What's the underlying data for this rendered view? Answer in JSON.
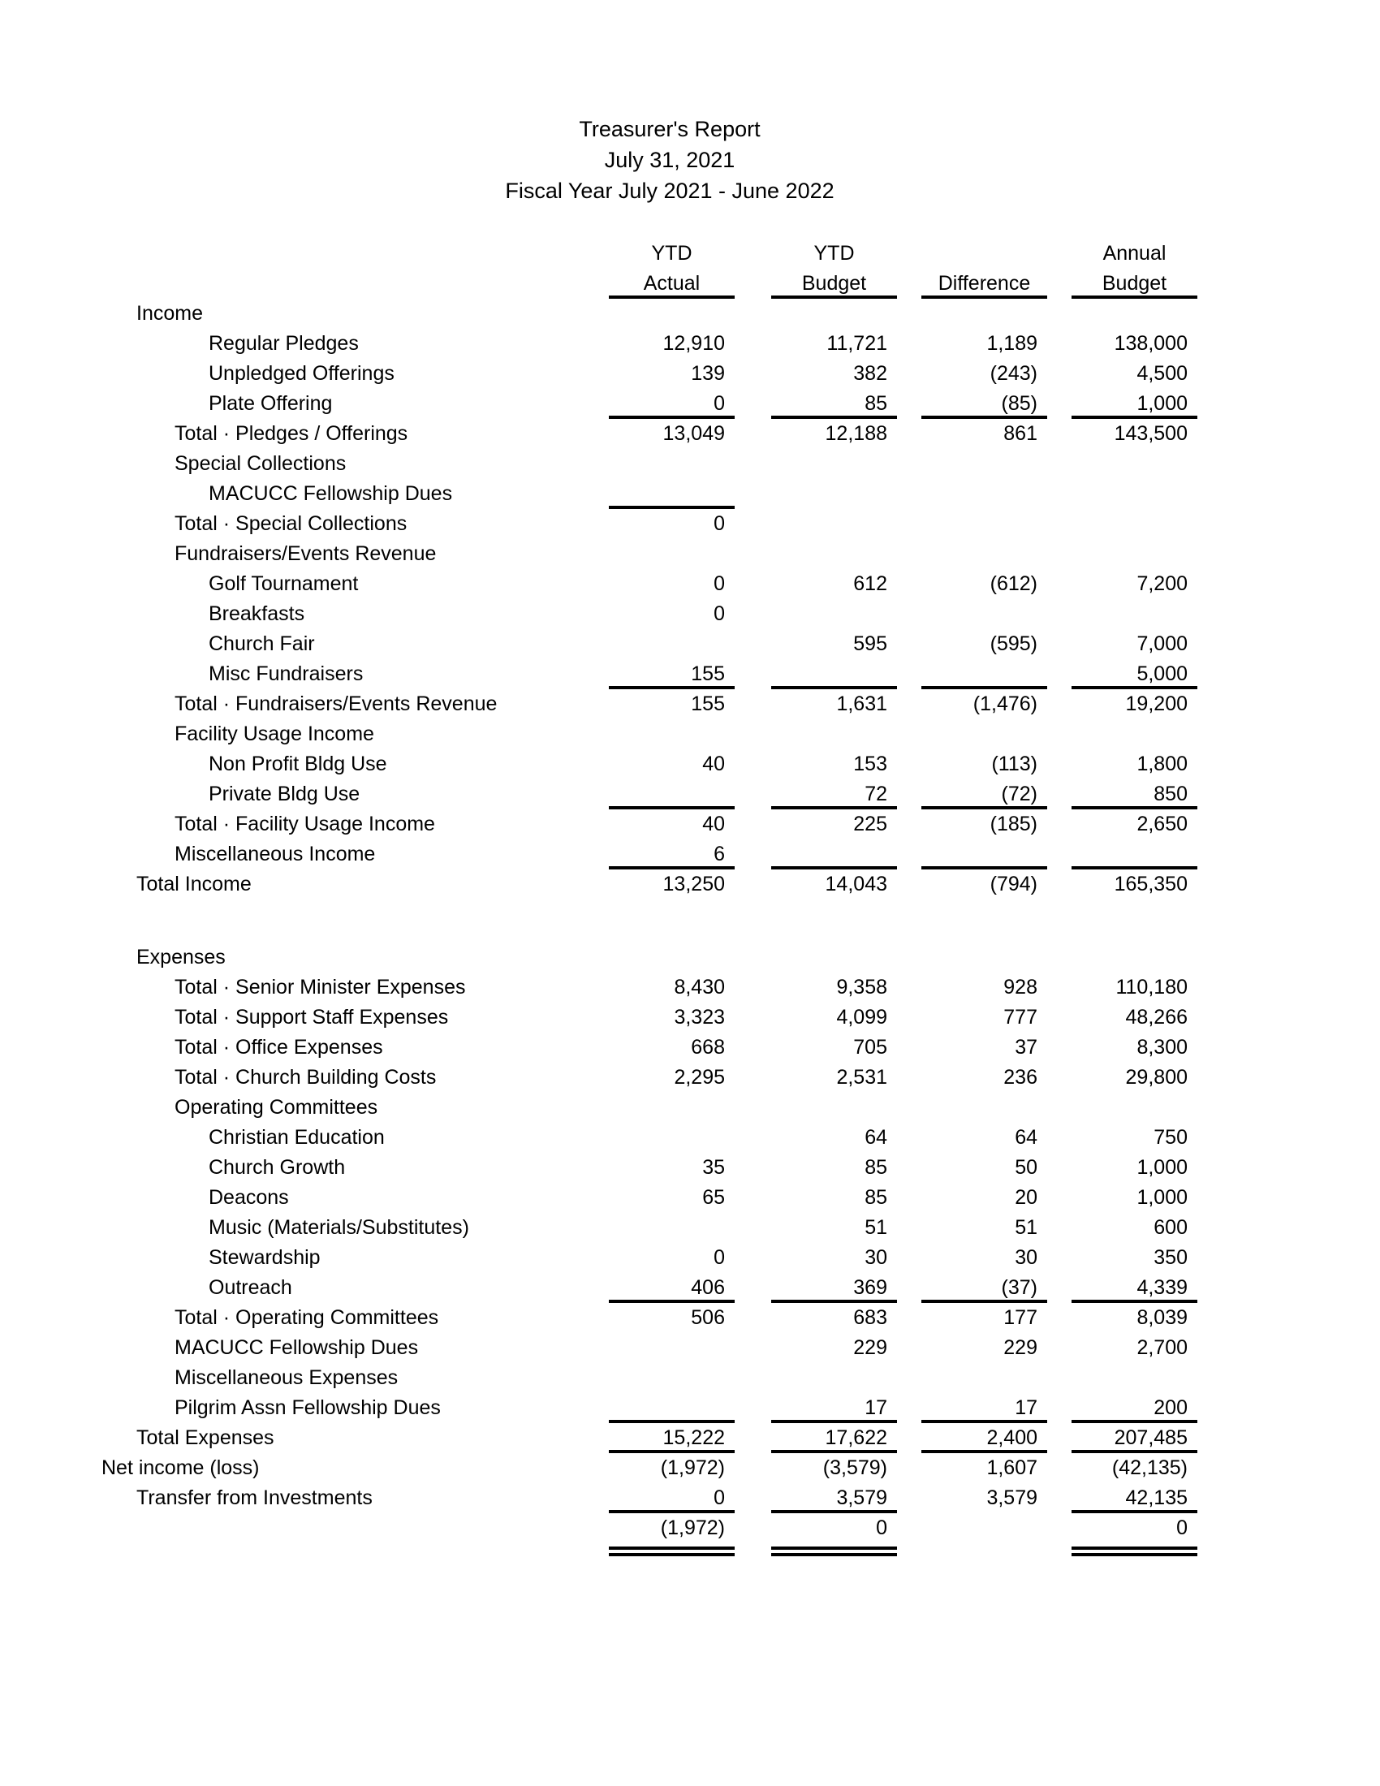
{
  "report": {
    "title_lines": [
      "Treasurer's Report",
      "July 31, 2021",
      "Fiscal Year July 2021 - June 2022"
    ],
    "columns": [
      {
        "line1": "YTD",
        "line2": "Actual"
      },
      {
        "line1": "YTD",
        "line2": "Budget"
      },
      {
        "line1": "",
        "line2": "Difference"
      },
      {
        "line1": "Annual",
        "line2": "Budget"
      }
    ],
    "rows": [
      {
        "label": "Income",
        "indent": 1,
        "values": [
          "",
          "",
          "",
          ""
        ]
      },
      {
        "label": "Regular Pledges",
        "indent": 3,
        "values": [
          "12,910",
          "11,721",
          "1,189",
          "138,000"
        ]
      },
      {
        "label": "Unpledged Offerings",
        "indent": 3,
        "values": [
          "139",
          "382",
          "(243)",
          "4,500"
        ]
      },
      {
        "label": "Plate Offering",
        "indent": 3,
        "values": [
          "0",
          "85",
          "(85)",
          "1,000"
        ],
        "rule_below": [
          1,
          1,
          1,
          1
        ]
      },
      {
        "label": "Total · Pledges / Offerings",
        "indent": 2,
        "values": [
          "13,049",
          "12,188",
          "861",
          "143,500"
        ]
      },
      {
        "label": "Special Collections",
        "indent": 2,
        "values": [
          "",
          "",
          "",
          ""
        ]
      },
      {
        "label": "MACUCC Fellowship Dues",
        "indent": 3,
        "values": [
          "",
          "",
          "",
          ""
        ],
        "rule_below": [
          1,
          0,
          0,
          0
        ]
      },
      {
        "label": "Total · Special Collections",
        "indent": 2,
        "values": [
          "0",
          "",
          "",
          ""
        ]
      },
      {
        "label": "Fundraisers/Events Revenue",
        "indent": 2,
        "values": [
          "",
          "",
          "",
          ""
        ]
      },
      {
        "label": "Golf Tournament",
        "indent": 3,
        "values": [
          "0",
          "612",
          "(612)",
          "7,200"
        ]
      },
      {
        "label": "Breakfasts",
        "indent": 3,
        "values": [
          "0",
          "",
          "",
          ""
        ]
      },
      {
        "label": "Church Fair",
        "indent": 3,
        "values": [
          "",
          "595",
          "(595)",
          "7,000"
        ]
      },
      {
        "label": "Misc Fundraisers",
        "indent": 3,
        "values": [
          "155",
          "",
          "",
          "5,000"
        ],
        "rule_below": [
          1,
          1,
          1,
          1
        ]
      },
      {
        "label": "Total · Fundraisers/Events Revenue",
        "indent": 2,
        "values": [
          "155",
          "1,631",
          "(1,476)",
          "19,200"
        ]
      },
      {
        "label": "Facility Usage Income",
        "indent": 2,
        "values": [
          "",
          "",
          "",
          ""
        ]
      },
      {
        "label": "Non Profit Bldg Use",
        "indent": 3,
        "values": [
          "40",
          "153",
          "(113)",
          "1,800"
        ]
      },
      {
        "label": "Private Bldg Use",
        "indent": 3,
        "values": [
          "",
          "72",
          "(72)",
          "850"
        ],
        "rule_below": [
          1,
          1,
          1,
          1
        ]
      },
      {
        "label": "Total · Facility Usage Income",
        "indent": 2,
        "values": [
          "40",
          "225",
          "(185)",
          "2,650"
        ]
      },
      {
        "label": "Miscellaneous Income",
        "indent": 2,
        "values": [
          "6",
          "",
          "",
          ""
        ],
        "rule_below": [
          1,
          1,
          1,
          1
        ]
      },
      {
        "label": "Total Income",
        "indent": 1,
        "values": [
          "13,250",
          "14,043",
          "(794)",
          "165,350"
        ]
      },
      {
        "label": "Expenses",
        "indent": 1,
        "values": [
          "",
          "",
          "",
          ""
        ],
        "gap_before": true
      },
      {
        "label": "Total · Senior Minister Expenses",
        "indent": 2,
        "values": [
          "8,430",
          "9,358",
          "928",
          "110,180"
        ]
      },
      {
        "label": "Total · Support Staff Expenses",
        "indent": 2,
        "values": [
          "3,323",
          "4,099",
          "777",
          "48,266"
        ]
      },
      {
        "label": "Total · Office Expenses",
        "indent": 2,
        "values": [
          "668",
          "705",
          "37",
          "8,300"
        ]
      },
      {
        "label": "Total · Church Building Costs",
        "indent": 2,
        "values": [
          "2,295",
          "2,531",
          "236",
          "29,800"
        ]
      },
      {
        "label": "Operating Committees",
        "indent": 2,
        "values": [
          "",
          "",
          "",
          ""
        ]
      },
      {
        "label": "Christian Education",
        "indent": 3,
        "values": [
          "",
          "64",
          "64",
          "750"
        ]
      },
      {
        "label": "Church Growth",
        "indent": 3,
        "values": [
          "35",
          "85",
          "50",
          "1,000"
        ]
      },
      {
        "label": "Deacons",
        "indent": 3,
        "values": [
          "65",
          "85",
          "20",
          "1,000"
        ]
      },
      {
        "label": "Music (Materials/Substitutes)",
        "indent": 3,
        "values": [
          "",
          "51",
          "51",
          "600"
        ]
      },
      {
        "label": "Stewardship",
        "indent": 3,
        "values": [
          "0",
          "30",
          "30",
          "350"
        ]
      },
      {
        "label": "Outreach",
        "indent": 3,
        "values": [
          "406",
          "369",
          "(37)",
          "4,339"
        ],
        "rule_below": [
          1,
          1,
          1,
          1
        ]
      },
      {
        "label": "Total · Operating Committees",
        "indent": 2,
        "values": [
          "506",
          "683",
          "177",
          "8,039"
        ]
      },
      {
        "label": "MACUCC Fellowship Dues",
        "indent": 2,
        "values": [
          "",
          "229",
          "229",
          "2,700"
        ]
      },
      {
        "label": "Miscellaneous Expenses",
        "indent": 2,
        "values": [
          "",
          "",
          "",
          ""
        ]
      },
      {
        "label": "Pilgrim Assn Fellowship Dues",
        "indent": 2,
        "values": [
          "",
          "17",
          "17",
          "200"
        ],
        "rule_below": [
          1,
          1,
          1,
          1
        ]
      },
      {
        "label": "Total Expenses",
        "indent": 1,
        "values": [
          "15,222",
          "17,622",
          "2,400",
          "207,485"
        ],
        "rule_below": [
          1,
          1,
          1,
          1
        ]
      },
      {
        "label": "Net income (loss)",
        "indent": 0,
        "values": [
          "(1,972)",
          "(3,579)",
          "1,607",
          "(42,135)"
        ]
      },
      {
        "label": "Transfer from Investments",
        "indent": 1,
        "values": [
          "0",
          "3,579",
          "3,579",
          "42,135"
        ],
        "rule_below": [
          1,
          1,
          0,
          1
        ]
      },
      {
        "label": "",
        "indent": 0,
        "values": [
          "(1,972)",
          "0",
          "",
          "0"
        ],
        "double_below": [
          1,
          1,
          0,
          1
        ]
      }
    ]
  }
}
